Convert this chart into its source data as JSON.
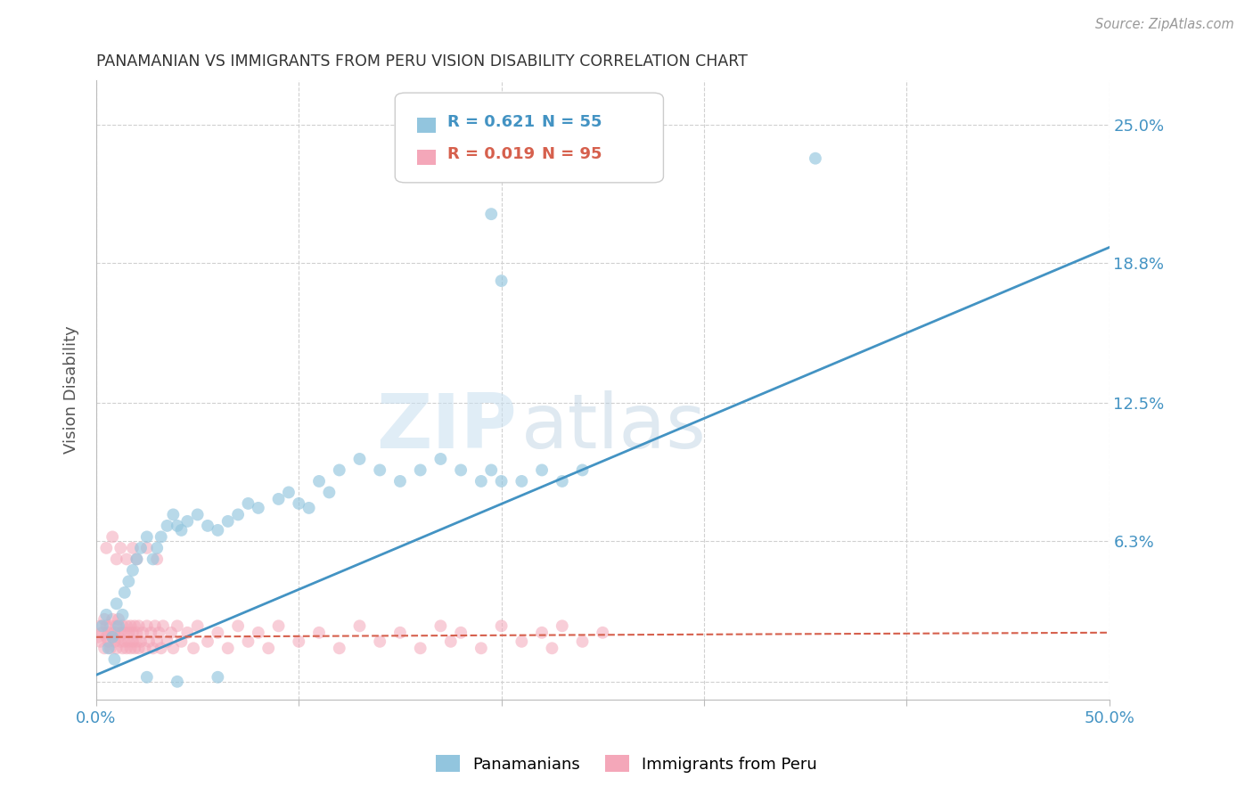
{
  "title": "PANAMANIAN VS IMMIGRANTS FROM PERU VISION DISABILITY CORRELATION CHART",
  "source": "Source: ZipAtlas.com",
  "ylabel": "Vision Disability",
  "xlim": [
    0.0,
    0.5
  ],
  "ylim": [
    -0.008,
    0.27
  ],
  "yticks": [
    0.0,
    0.063,
    0.125,
    0.188,
    0.25
  ],
  "ytick_labels": [
    "",
    "6.3%",
    "12.5%",
    "18.8%",
    "25.0%"
  ],
  "xticks": [
    0.0,
    0.1,
    0.2,
    0.3,
    0.4,
    0.5
  ],
  "xtick_labels": [
    "0.0%",
    "",
    "",
    "",
    "",
    "50.0%"
  ],
  "background_color": "#ffffff",
  "grid_color": "#d0d0d0",
  "watermark_zip": "ZIP",
  "watermark_atlas": "atlas",
  "blue_color": "#92c5de",
  "pink_color": "#f4a7b9",
  "blue_line_color": "#4393c3",
  "pink_line_color": "#d6604d",
  "legend_blue_label": "Panamanians",
  "legend_pink_label": "Immigrants from Peru",
  "R_blue": 0.621,
  "N_blue": 55,
  "R_pink": 0.019,
  "N_pink": 95,
  "blue_line_y_start": 0.003,
  "blue_line_y_end": 0.195,
  "pink_line_y_start": 0.02,
  "pink_line_y_end": 0.022,
  "blue_scatter_x": [
    0.003,
    0.005,
    0.006,
    0.008,
    0.009,
    0.01,
    0.011,
    0.013,
    0.014,
    0.016,
    0.018,
    0.02,
    0.022,
    0.025,
    0.028,
    0.03,
    0.032,
    0.035,
    0.038,
    0.04,
    0.042,
    0.045,
    0.05,
    0.055,
    0.06,
    0.065,
    0.07,
    0.075,
    0.08,
    0.09,
    0.095,
    0.1,
    0.105,
    0.11,
    0.115,
    0.12,
    0.13,
    0.14,
    0.15,
    0.16,
    0.17,
    0.18,
    0.19,
    0.195,
    0.2,
    0.21,
    0.22,
    0.23,
    0.24,
    0.195,
    0.2,
    0.355,
    0.025,
    0.04,
    0.06
  ],
  "blue_scatter_y": [
    0.025,
    0.03,
    0.015,
    0.02,
    0.01,
    0.035,
    0.025,
    0.03,
    0.04,
    0.045,
    0.05,
    0.055,
    0.06,
    0.065,
    0.055,
    0.06,
    0.065,
    0.07,
    0.075,
    0.07,
    0.068,
    0.072,
    0.075,
    0.07,
    0.068,
    0.072,
    0.075,
    0.08,
    0.078,
    0.082,
    0.085,
    0.08,
    0.078,
    0.09,
    0.085,
    0.095,
    0.1,
    0.095,
    0.09,
    0.095,
    0.1,
    0.095,
    0.09,
    0.095,
    0.09,
    0.09,
    0.095,
    0.09,
    0.095,
    0.21,
    0.18,
    0.235,
    0.002,
    0.0,
    0.002
  ],
  "pink_scatter_x": [
    0.001,
    0.002,
    0.002,
    0.003,
    0.004,
    0.004,
    0.005,
    0.005,
    0.006,
    0.006,
    0.007,
    0.007,
    0.008,
    0.008,
    0.009,
    0.009,
    0.01,
    0.01,
    0.011,
    0.011,
    0.012,
    0.012,
    0.013,
    0.013,
    0.014,
    0.014,
    0.015,
    0.015,
    0.016,
    0.016,
    0.017,
    0.017,
    0.018,
    0.018,
    0.019,
    0.019,
    0.02,
    0.02,
    0.021,
    0.021,
    0.022,
    0.023,
    0.024,
    0.025,
    0.026,
    0.027,
    0.028,
    0.029,
    0.03,
    0.031,
    0.032,
    0.033,
    0.035,
    0.037,
    0.038,
    0.04,
    0.042,
    0.045,
    0.048,
    0.05,
    0.055,
    0.06,
    0.065,
    0.07,
    0.075,
    0.08,
    0.085,
    0.09,
    0.1,
    0.11,
    0.12,
    0.13,
    0.14,
    0.15,
    0.16,
    0.17,
    0.175,
    0.18,
    0.19,
    0.2,
    0.21,
    0.22,
    0.225,
    0.23,
    0.24,
    0.25,
    0.005,
    0.008,
    0.01,
    0.012,
    0.015,
    0.018,
    0.02,
    0.025,
    0.03
  ],
  "pink_scatter_y": [
    0.02,
    0.018,
    0.025,
    0.022,
    0.015,
    0.028,
    0.02,
    0.025,
    0.018,
    0.022,
    0.015,
    0.025,
    0.02,
    0.028,
    0.018,
    0.022,
    0.015,
    0.025,
    0.02,
    0.028,
    0.018,
    0.022,
    0.015,
    0.025,
    0.018,
    0.022,
    0.015,
    0.025,
    0.018,
    0.022,
    0.015,
    0.025,
    0.018,
    0.022,
    0.015,
    0.025,
    0.018,
    0.022,
    0.015,
    0.025,
    0.018,
    0.022,
    0.015,
    0.025,
    0.018,
    0.022,
    0.015,
    0.025,
    0.018,
    0.022,
    0.015,
    0.025,
    0.018,
    0.022,
    0.015,
    0.025,
    0.018,
    0.022,
    0.015,
    0.025,
    0.018,
    0.022,
    0.015,
    0.025,
    0.018,
    0.022,
    0.015,
    0.025,
    0.018,
    0.022,
    0.015,
    0.025,
    0.018,
    0.022,
    0.015,
    0.025,
    0.018,
    0.022,
    0.015,
    0.025,
    0.018,
    0.022,
    0.015,
    0.025,
    0.018,
    0.022,
    0.06,
    0.065,
    0.055,
    0.06,
    0.055,
    0.06,
    0.055,
    0.06,
    0.055
  ]
}
